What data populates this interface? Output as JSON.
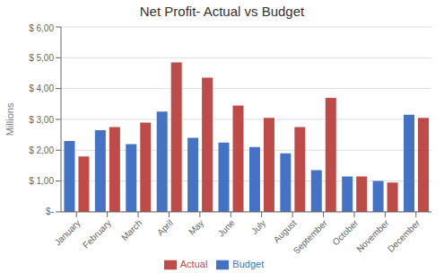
{
  "chart_data": {
    "type": "bar",
    "title": "Net Profit- Actual vs Budget",
    "ylabel": "Millions",
    "categories": [
      "January",
      "February",
      "March",
      "April",
      "May",
      "June",
      "July",
      "August",
      "September",
      "October",
      "November",
      "December"
    ],
    "series": [
      {
        "name": "Budget",
        "color": "#4472C4",
        "values": [
          2.3,
          2.65,
          2.2,
          3.25,
          2.4,
          2.25,
          2.1,
          1.9,
          1.35,
          1.15,
          1.0,
          3.15
        ]
      },
      {
        "name": "Actual",
        "color": "#BE4B48",
        "values": [
          1.8,
          2.75,
          2.9,
          4.85,
          4.35,
          3.45,
          3.05,
          2.75,
          3.7,
          1.15,
          0.95,
          3.05
        ]
      }
    ],
    "ylim": [
      0,
      6.0
    ],
    "yticks": [
      {
        "value": 0,
        "label": "$-"
      },
      {
        "value": 1.0,
        "label": "$ 1,00"
      },
      {
        "value": 2.0,
        "label": "$ 2,00"
      },
      {
        "value": 3.0,
        "label": "$ 3,00"
      },
      {
        "value": 4.0,
        "label": "$ 4,00"
      },
      {
        "value": 5.0,
        "label": "$ 5,00"
      },
      {
        "value": 6.0,
        "label": "$ 6,00"
      }
    ],
    "grid": true,
    "legend": "bottom"
  }
}
